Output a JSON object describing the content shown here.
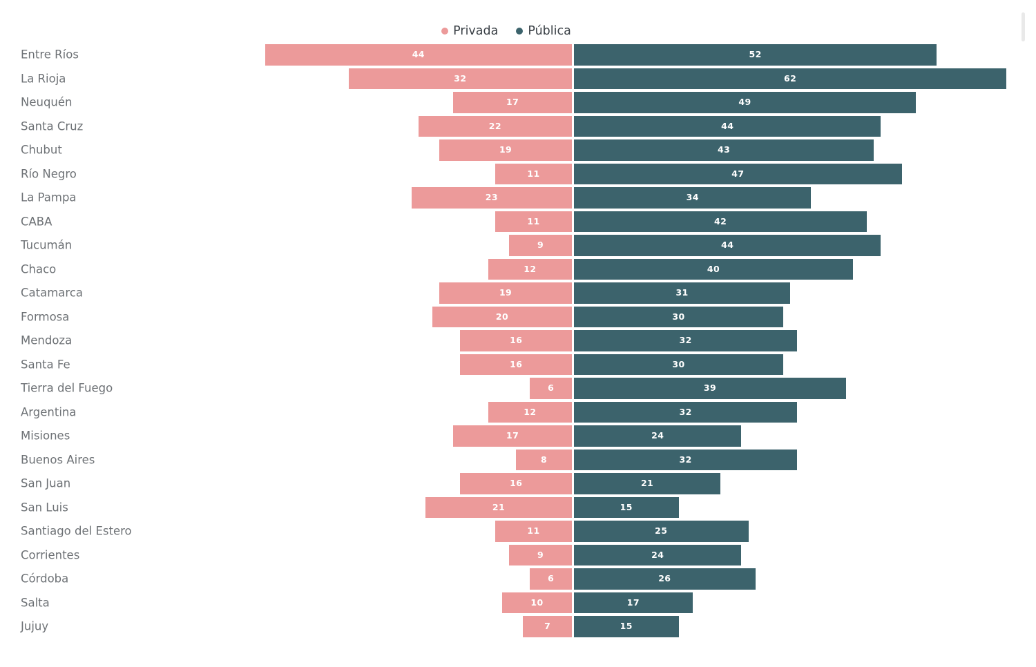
{
  "legend": {
    "items": [
      {
        "label": "Privada",
        "color": "#ec9a9a"
      },
      {
        "label": "Pública",
        "color": "#3c636c"
      }
    ],
    "position": "top-center"
  },
  "colors": {
    "privada": "#ec9a9a",
    "publica": "#3c636c",
    "value_text": "#ffffff",
    "category_text": "#6d7175",
    "legend_text": "#3a4046",
    "background": "#ffffff"
  },
  "chart_data": {
    "type": "bar",
    "variant": "diverging-horizontal",
    "title": "",
    "xlabel": "",
    "ylabel": "",
    "grid": false,
    "legend_position": "top",
    "value_labels": "inside-center",
    "axis_max_per_side": 62,
    "categories": [
      "Entre Ríos",
      "La Rioja",
      "Neuquén",
      "Santa Cruz",
      "Chubut",
      "Río Negro",
      "La Pampa",
      "CABA",
      "Tucumán",
      "Chaco",
      "Catamarca",
      "Formosa",
      "Mendoza",
      "Santa Fe",
      "Tierra del Fuego",
      "Argentina",
      "Misiones",
      "Buenos Aires",
      "San Juan",
      "San Luis",
      "Santiago del Estero",
      "Corrientes",
      "Córdoba",
      "Salta",
      "Jujuy"
    ],
    "series": [
      {
        "name": "Privada",
        "side": "left",
        "color": "#ec9a9a",
        "values": [
          44,
          32,
          17,
          22,
          19,
          11,
          23,
          11,
          9,
          12,
          19,
          20,
          16,
          16,
          6,
          12,
          17,
          8,
          16,
          21,
          11,
          9,
          6,
          10,
          7
        ]
      },
      {
        "name": "Pública",
        "side": "right",
        "color": "#3c636c",
        "values": [
          52,
          62,
          49,
          44,
          43,
          47,
          34,
          42,
          44,
          40,
          31,
          30,
          32,
          30,
          39,
          32,
          24,
          32,
          21,
          15,
          25,
          24,
          26,
          17,
          15
        ]
      }
    ]
  }
}
